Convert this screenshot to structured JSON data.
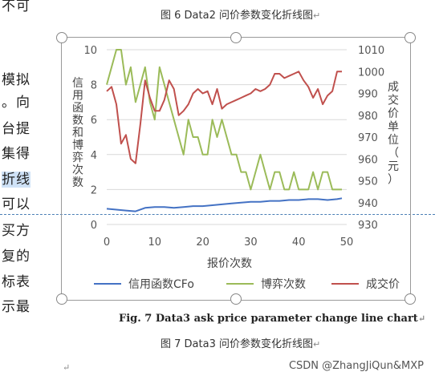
{
  "doc": {
    "top_partial": "不可",
    "left_margin_lines": [
      "模拟",
      "。向",
      "台提",
      "集得",
      "折线",
      "可以",
      "买方",
      "复的",
      "标表",
      "示最"
    ],
    "caption_top": "图 6 Data2 问价参数变化折线图",
    "caption_en": "Fig. 7 Data3 ask price parameter change line chart",
    "caption_cn": "图 7 Data3 问价参数变化折线图",
    "watermark": "CSDN @ZhangJiQun&MXP",
    "para_mark": "↵"
  },
  "chart_data": {
    "type": "line",
    "xlabel": "报价次数",
    "ylabel_left": "信用函数和博弈次数",
    "ylabel_right": "成交价单位（元）",
    "xlim": [
      0,
      50
    ],
    "ylim_left": [
      0,
      10
    ],
    "ylim_right": [
      930,
      1010
    ],
    "x_ticks": [
      0,
      10,
      20,
      30,
      40,
      50
    ],
    "y_left_ticks": [
      0,
      2,
      4,
      6,
      8,
      10
    ],
    "y_right_ticks": [
      930,
      940,
      950,
      960,
      970,
      980,
      990,
      1000,
      1010
    ],
    "grid": true,
    "legend_position": "bottom",
    "series": [
      {
        "name": "信用函数CFo",
        "axis": "left",
        "color": "#4472c4",
        "x": [
          0,
          2,
          4,
          6,
          8,
          10,
          12,
          14,
          16,
          18,
          20,
          22,
          24,
          26,
          28,
          30,
          32,
          34,
          36,
          38,
          40,
          42,
          44,
          46,
          48,
          49
        ],
        "values": [
          0.9,
          0.85,
          0.8,
          0.75,
          0.95,
          1.0,
          1.0,
          0.95,
          1.0,
          1.05,
          1.05,
          1.1,
          1.15,
          1.2,
          1.25,
          1.3,
          1.3,
          1.35,
          1.35,
          1.4,
          1.4,
          1.45,
          1.45,
          1.4,
          1.45,
          1.5
        ]
      },
      {
        "name": "博弈次数",
        "axis": "left",
        "color": "#9bbb59",
        "x": [
          0,
          1,
          2,
          3,
          4,
          5,
          6,
          7,
          8,
          9,
          10,
          11,
          12,
          13,
          14,
          15,
          16,
          17,
          18,
          19,
          20,
          21,
          22,
          23,
          24,
          25,
          26,
          27,
          28,
          29,
          30,
          31,
          32,
          33,
          34,
          35,
          36,
          37,
          38,
          39,
          40,
          41,
          42,
          43,
          44,
          45,
          46,
          47,
          48,
          49
        ],
        "values": [
          8,
          9,
          10,
          10,
          8,
          9,
          7,
          8,
          9,
          7,
          6,
          9,
          8,
          7,
          6,
          5,
          4,
          6,
          5,
          5,
          4,
          4,
          6,
          5,
          6,
          5,
          4,
          4,
          3,
          3,
          2,
          3,
          4,
          3,
          2,
          3,
          3,
          2,
          2,
          3,
          2,
          2,
          2,
          3,
          2,
          3,
          3,
          2,
          2,
          2
        ]
      },
      {
        "name": "成交价",
        "axis": "right",
        "color": "#c0504d",
        "x": [
          0,
          1,
          2,
          3,
          4,
          5,
          6,
          7,
          8,
          9,
          10,
          11,
          12,
          13,
          14,
          15,
          16,
          17,
          18,
          19,
          20,
          21,
          22,
          23,
          24,
          25,
          26,
          27,
          28,
          29,
          30,
          31,
          32,
          33,
          34,
          35,
          36,
          37,
          38,
          39,
          40,
          41,
          42,
          43,
          44,
          45,
          46,
          47,
          48,
          49
        ],
        "values": [
          991,
          993,
          985,
          967,
          971,
          960,
          958,
          976,
          996,
          988,
          982,
          982,
          987,
          996,
          992,
          980,
          982,
          985,
          990,
          992,
          990,
          991,
          985,
          992,
          983,
          985,
          986,
          987,
          988,
          989,
          990,
          992,
          991,
          992,
          994,
          999,
          999,
          997,
          998,
          999,
          1000,
          996,
          993,
          988,
          992,
          985,
          989,
          991,
          1000,
          1000
        ]
      }
    ]
  }
}
